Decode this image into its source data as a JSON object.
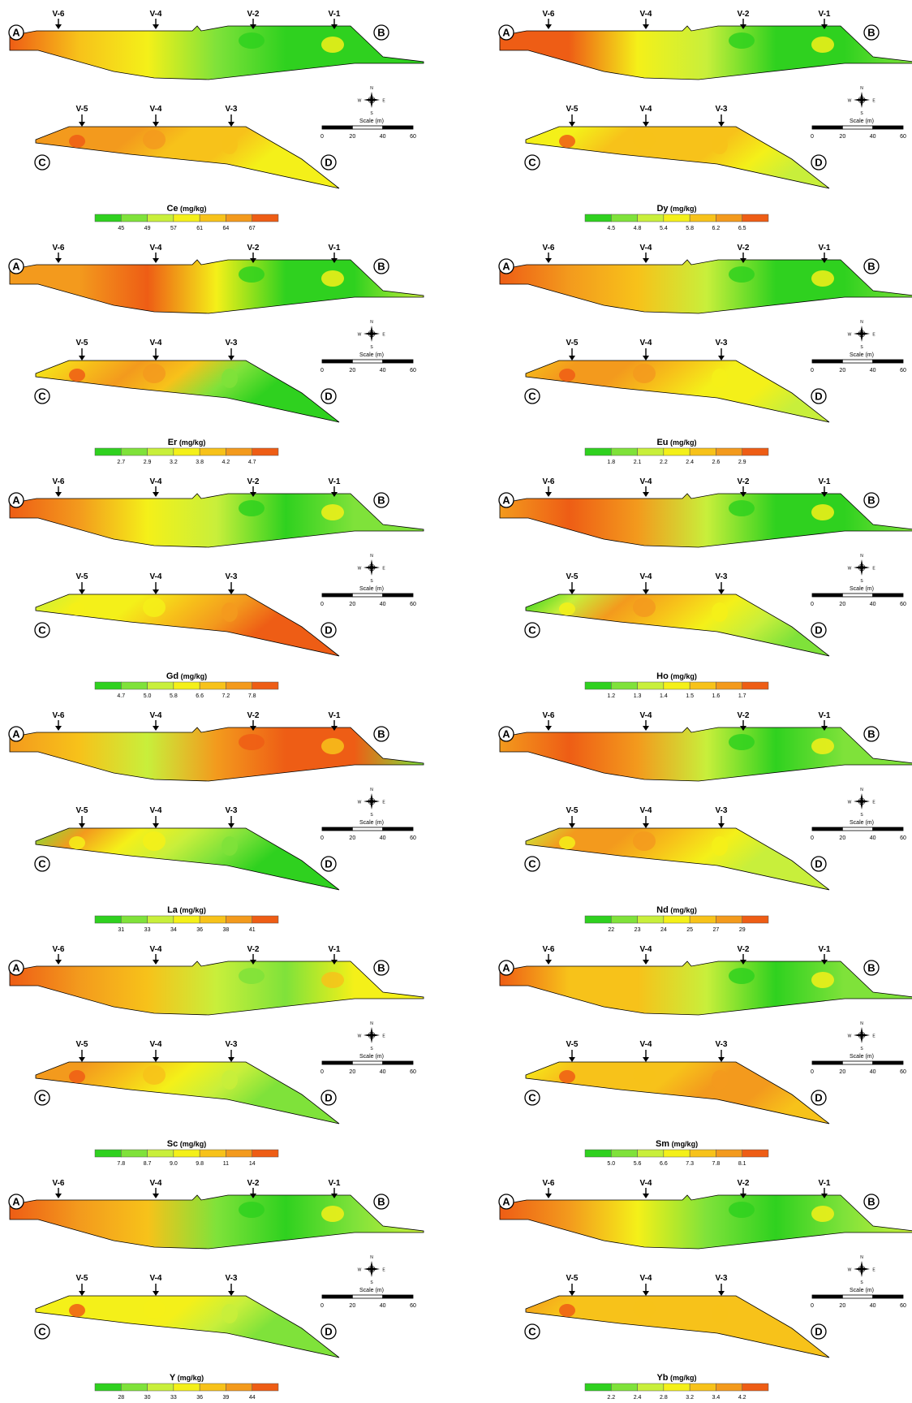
{
  "labels": {
    "corners": [
      "A",
      "B",
      "C",
      "D"
    ],
    "top_line_wells": [
      "V-6",
      "V-4",
      "V-2",
      "V-1"
    ],
    "bottom_line_wells": [
      "V-5",
      "V-4",
      "V-3"
    ],
    "scale_title": "Scale (m)",
    "scale_ticks": [
      "0",
      "20",
      "40",
      "60"
    ],
    "compass": [
      "N",
      "S",
      "E",
      "W"
    ]
  },
  "colors": {
    "ramp": [
      "#2fd11f",
      "#7fe23a",
      "#c8ef3b",
      "#f4f019",
      "#f7c21a",
      "#f39a1d",
      "#ee5d15"
    ]
  },
  "maps": [
    {
      "element": "Ce",
      "unit": "(mg/kg)",
      "legend": [
        "45",
        "49",
        "57",
        "61",
        "64",
        "67"
      ],
      "top": [
        6,
        4,
        3,
        1,
        0,
        0,
        0
      ],
      "bottom": [
        5,
        5,
        5,
        4,
        4,
        3,
        3
      ]
    },
    {
      "element": "Dy",
      "unit": "(mg/kg)",
      "legend": [
        "4.5",
        "4.8",
        "5.4",
        "5.8",
        "6.2",
        "6.5"
      ],
      "top": [
        6,
        6,
        3,
        2,
        0,
        0,
        1
      ],
      "bottom": [
        3,
        3,
        4,
        4,
        4,
        3,
        2
      ]
    },
    {
      "element": "Er",
      "unit": "(mg/kg)",
      "legend": [
        "2.7",
        "2.9",
        "3.2",
        "3.8",
        "4.2",
        "4.7"
      ],
      "top": [
        5,
        5,
        6,
        3,
        0,
        0,
        2
      ],
      "bottom": [
        3,
        4,
        5,
        4,
        1,
        0,
        0
      ]
    },
    {
      "element": "Eu",
      "unit": "(mg/kg)",
      "legend": [
        "1.8",
        "2.1",
        "2.2",
        "2.4",
        "2.6",
        "2.9"
      ],
      "top": [
        6,
        5,
        4,
        2,
        0,
        0,
        1
      ],
      "bottom": [
        4,
        5,
        5,
        4,
        3,
        3,
        2
      ]
    },
    {
      "element": "Gd",
      "unit": "(mg/kg)",
      "legend": [
        "4.7",
        "5.0",
        "5.8",
        "6.6",
        "7.2",
        "7.8"
      ],
      "top": [
        6,
        5,
        3,
        2,
        0,
        1,
        1
      ],
      "bottom": [
        2,
        3,
        3,
        4,
        5,
        6,
        6
      ]
    },
    {
      "element": "Ho",
      "unit": "(mg/kg)",
      "legend": [
        "1.2",
        "1.3",
        "1.4",
        "1.5",
        "1.6",
        "1.7"
      ],
      "top": [
        5,
        6,
        5,
        2,
        0,
        0,
        1
      ],
      "bottom": [
        0,
        2,
        5,
        4,
        3,
        2,
        1
      ]
    },
    {
      "element": "La",
      "unit": "(mg/kg)",
      "legend": [
        "31",
        "33",
        "34",
        "36",
        "38",
        "41"
      ],
      "top": [
        5,
        4,
        2,
        5,
        6,
        6,
        1
      ],
      "bottom": [
        1,
        5,
        3,
        2,
        1,
        0,
        0
      ]
    },
    {
      "element": "Nd",
      "unit": "(mg/kg)",
      "legend": [
        "22",
        "23",
        "24",
        "25",
        "27",
        "29"
      ],
      "top": [
        5,
        6,
        5,
        2,
        0,
        1,
        1
      ],
      "bottom": [
        2,
        5,
        5,
        4,
        3,
        2,
        2
      ]
    },
    {
      "element": "Sc",
      "unit": "(mg/kg)",
      "legend": [
        "7.8",
        "8.7",
        "9.0",
        "9.8",
        "11",
        "14"
      ],
      "top": [
        6,
        5,
        4,
        2,
        1,
        3,
        3
      ],
      "bottom": [
        5,
        5,
        4,
        3,
        2,
        1,
        1
      ]
    },
    {
      "element": "Sm",
      "unit": "(mg/kg)",
      "legend": [
        "5.0",
        "5.6",
        "6.6",
        "7.3",
        "7.8",
        "8.1"
      ],
      "top": [
        6,
        4,
        4,
        2,
        0,
        1,
        1
      ],
      "bottom": [
        3,
        4,
        4,
        4,
        5,
        5,
        4
      ]
    },
    {
      "element": "Y",
      "unit": "(mg/kg)",
      "legend": [
        "28",
        "30",
        "33",
        "36",
        "39",
        "44"
      ],
      "top": [
        6,
        5,
        4,
        1,
        0,
        1,
        2
      ],
      "bottom": [
        3,
        3,
        3,
        3,
        2,
        1,
        1
      ]
    },
    {
      "element": "Yb",
      "unit": "(mg/kg)",
      "legend": [
        "2.2",
        "2.4",
        "2.8",
        "3.2",
        "3.4",
        "4.2"
      ],
      "top": [
        6,
        5,
        3,
        1,
        0,
        1,
        2
      ],
      "bottom": [
        5,
        4,
        4,
        4,
        4,
        4,
        4
      ]
    }
  ]
}
